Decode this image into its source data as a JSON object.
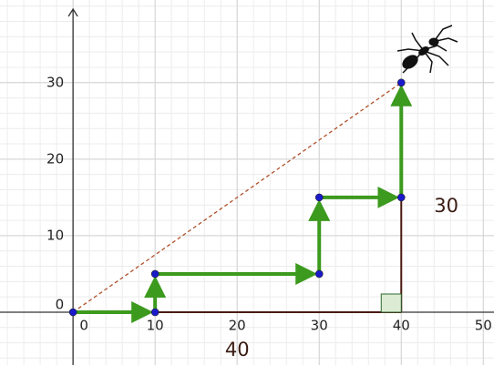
{
  "chart_data": {
    "type": "line",
    "x": [
      0,
      10,
      10,
      30,
      30,
      40,
      40
    ],
    "values": [
      0,
      0,
      5,
      5,
      15,
      15,
      30
    ],
    "color": "#3c9a1e",
    "point_color": "#1a1acc",
    "xlim": [
      -8.9,
      51.3
    ],
    "ylim": [
      -6.9,
      40.8
    ],
    "xticks": [
      0,
      10,
      20,
      30,
      40,
      50
    ],
    "yticks": [
      0,
      10,
      20,
      30
    ],
    "grid": true,
    "annotations": [
      "40",
      "30"
    ]
  }
}
